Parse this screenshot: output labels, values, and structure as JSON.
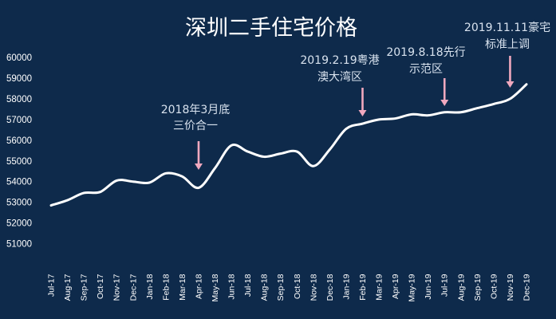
{
  "chart_data": {
    "type": "line",
    "title": "深圳二手住宅价格",
    "xlabel": "",
    "ylabel": "",
    "ylim": [
      50000,
      60000
    ],
    "grid": false,
    "categories": [
      "Jul-17",
      "Aug-17",
      "Sep-17",
      "Oct-17",
      "Nov-17",
      "Dec-17",
      "Jan-18",
      "Feb-18",
      "Mar-18",
      "Apr-18",
      "May-18",
      "Jun-18",
      "Jul-18",
      "Aug-18",
      "Sep-18",
      "Oct-18",
      "Nov-18",
      "Dec-18",
      "Jan-19",
      "Feb-19",
      "Mar-19",
      "Apr-19",
      "May-19",
      "Jun-19",
      "Jul-19",
      "Aug-19",
      "Sep-19",
      "Oct-19",
      "Nov-19",
      "Dec-19"
    ],
    "y_ticks": [
      "51000",
      "52000",
      "53000",
      "54000",
      "55000",
      "56000",
      "57000",
      "58000",
      "59000",
      "60000"
    ],
    "series": [
      {
        "values": [
          52850,
          53100,
          53450,
          53500,
          54050,
          54000,
          53950,
          54400,
          54250,
          53700,
          54650,
          55750,
          55450,
          55200,
          55350,
          55450,
          54750,
          55550,
          56550,
          56800,
          57000,
          57050,
          57250,
          57200,
          57350,
          57350,
          57550,
          57750,
          58000,
          58700
        ]
      }
    ],
    "annotations": [
      {
        "lines": [
          "2018年3月底",
          "三价合一"
        ],
        "category": "Apr-18"
      },
      {
        "lines": [
          "2019.2.19粤港",
          "澳大湾区"
        ],
        "category": "Feb-19"
      },
      {
        "lines": [
          "2019.8.18先行",
          "示范区"
        ],
        "category": "Jul-19"
      },
      {
        "lines": [
          "2019.11.11豪宅",
          "标准上调"
        ],
        "category": "Nov-19"
      }
    ],
    "colors": {
      "background": "#0e2a4b",
      "line": "#ffffff",
      "arrow": "#f0a8be",
      "annotation_text": "#d8e2ee"
    }
  }
}
